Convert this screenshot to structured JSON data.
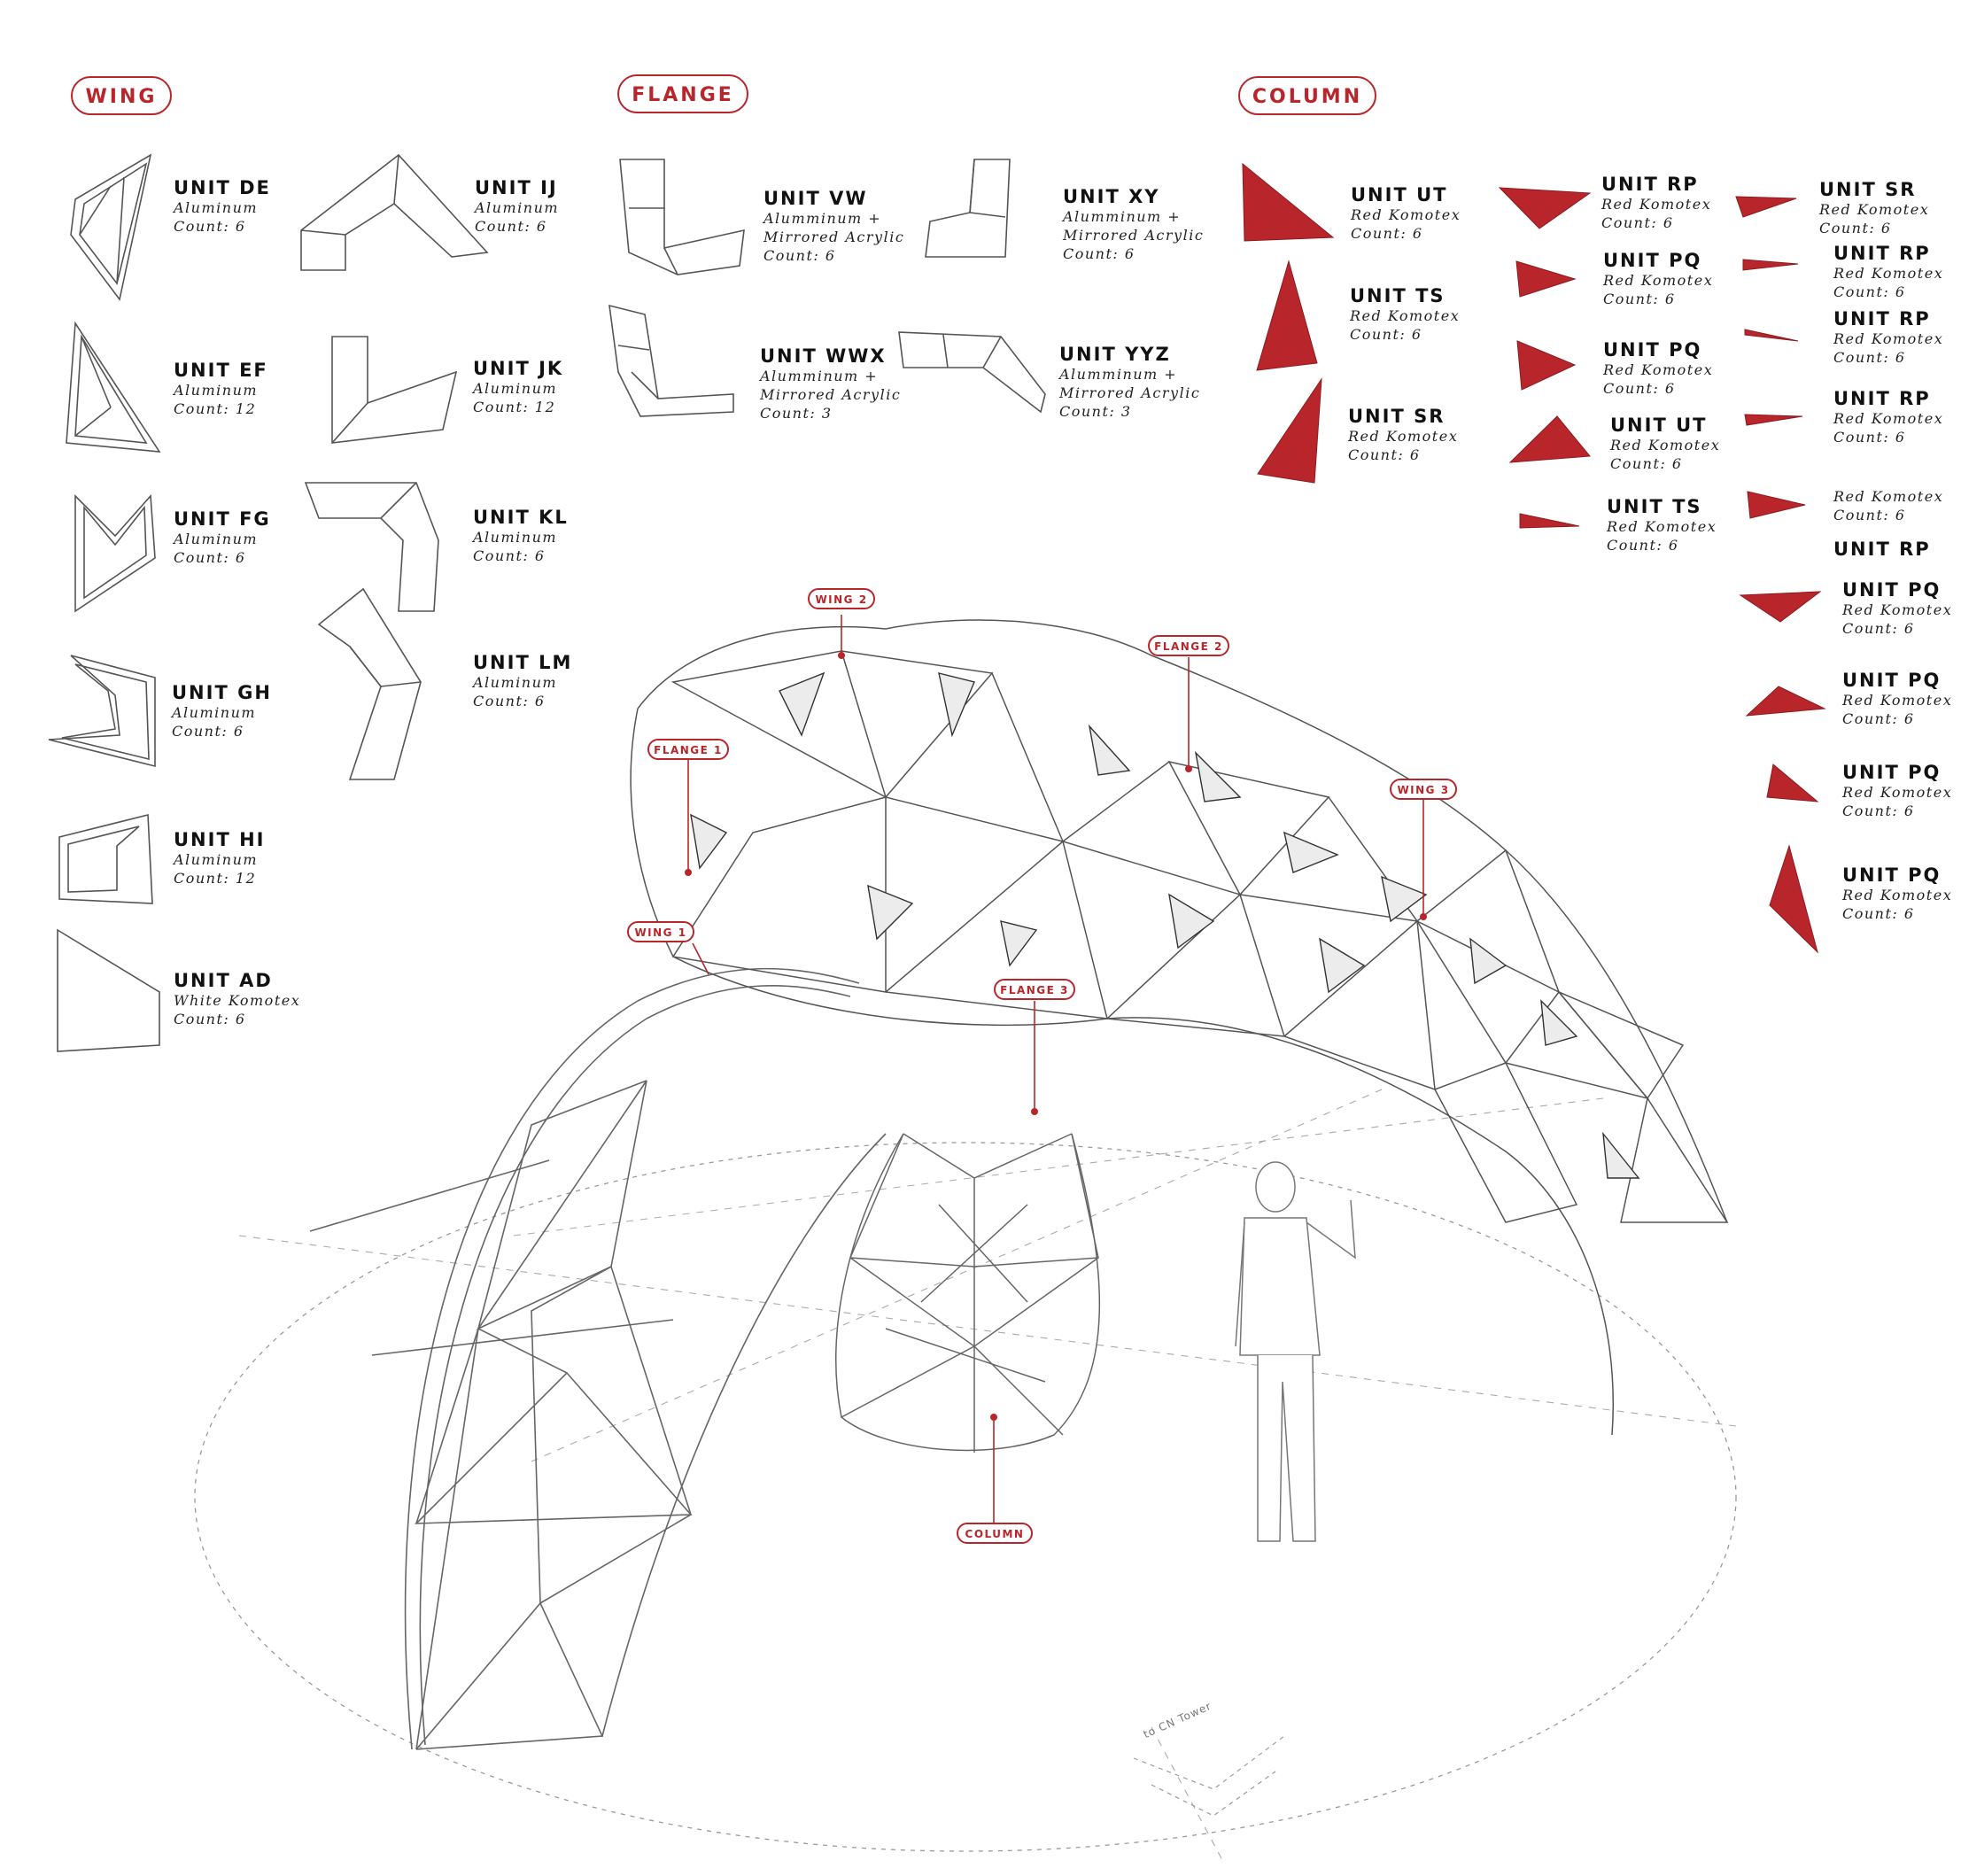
{
  "categories": {
    "wing": "WING",
    "flange": "FLANGE",
    "column": "COLUMN"
  },
  "wing_units": [
    {
      "name": "UNIT DE",
      "material": "Aluminum",
      "count": "Count: 6"
    },
    {
      "name": "UNIT EF",
      "material": "Aluminum",
      "count": "Count: 12"
    },
    {
      "name": "UNIT FG",
      "material": "Aluminum",
      "count": "Count: 6"
    },
    {
      "name": "UNIT GH",
      "material": "Aluminum",
      "count": "Count: 6"
    },
    {
      "name": "UNIT HI",
      "material": "Aluminum",
      "count": "Count: 12"
    },
    {
      "name": "UNIT AD",
      "material": "White Komotex",
      "count": "Count: 6"
    },
    {
      "name": "UNIT IJ",
      "material": "Aluminum",
      "count": "Count: 6"
    },
    {
      "name": "UNIT JK",
      "material": "Aluminum",
      "count": "Count: 12"
    },
    {
      "name": "UNIT KL",
      "material": "Aluminum",
      "count": "Count: 6"
    },
    {
      "name": "UNIT LM",
      "material": "Aluminum",
      "count": "Count: 6"
    }
  ],
  "flange_units": [
    {
      "name": "UNIT VW",
      "material": "Alumminum +",
      "material2": "Mirrored Acrylic",
      "count": "Count: 6"
    },
    {
      "name": "UNIT XY",
      "material": "Alumminum +",
      "material2": "Mirrored Acrylic",
      "count": "Count: 6"
    },
    {
      "name": "UNIT WWX",
      "material": "Alumminum +",
      "material2": "Mirrored Acrylic",
      "count": "Count: 3"
    },
    {
      "name": "UNIT YYZ",
      "material": "Alumminum +",
      "material2": "Mirrored Acrylic",
      "count": "Count: 3"
    }
  ],
  "column_units": [
    {
      "name": "UNIT UT",
      "material": "Red Komotex",
      "count": "Count: 6"
    },
    {
      "name": "UNIT TS",
      "material": "Red Komotex",
      "count": "Count: 6"
    },
    {
      "name": "UNIT SR",
      "material": "Red Komotex",
      "count": "Count: 6"
    },
    {
      "name": "UNIT RP",
      "material": "Red Komotex",
      "count": "Count: 6"
    },
    {
      "name": "UNIT PQ",
      "material": "Red Komotex",
      "count": "Count: 6"
    },
    {
      "name": "UNIT PQ",
      "material": "Red Komotex",
      "count": "Count: 6"
    },
    {
      "name": "UNIT UT",
      "material": "Red Komotex",
      "count": "Count: 6"
    },
    {
      "name": "UNIT TS",
      "material": "Red Komotex",
      "count": "Count: 6"
    },
    {
      "name": "UNIT SR",
      "material": "Red Komotex",
      "count": "Count: 6"
    },
    {
      "name": "UNIT RP",
      "material": "Red Komotex",
      "count": "Count: 6"
    },
    {
      "name": "UNIT RP",
      "material": "Red Komotex",
      "count": "Count: 6"
    },
    {
      "name": "UNIT RP",
      "material": "Red Komotex",
      "count": "Count: 6"
    },
    {
      "name": "",
      "material": "Red Komotex",
      "count": "Count: 6"
    },
    {
      "name": "UNIT RP",
      "material": "",
      "count": ""
    },
    {
      "name": "UNIT PQ",
      "material": "Red Komotex",
      "count": "Count: 6"
    },
    {
      "name": "UNIT PQ",
      "material": "Red Komotex",
      "count": "Count: 6"
    },
    {
      "name": "UNIT PQ",
      "material": "Red Komotex",
      "count": "Count: 6"
    },
    {
      "name": "UNIT PQ",
      "material": "Red Komotex",
      "count": "Count: 6"
    }
  ],
  "callouts": {
    "wing1": "WING 1",
    "wing2": "WING 2",
    "wing3": "WING 3",
    "flange1": "FLANGE 1",
    "flange2": "FLANGE 2",
    "flange3": "FLANGE 3",
    "column": "COLUMN"
  },
  "direction_label": "to CN Tower",
  "colors": {
    "accent": "#b8262b",
    "line": "#555555"
  }
}
